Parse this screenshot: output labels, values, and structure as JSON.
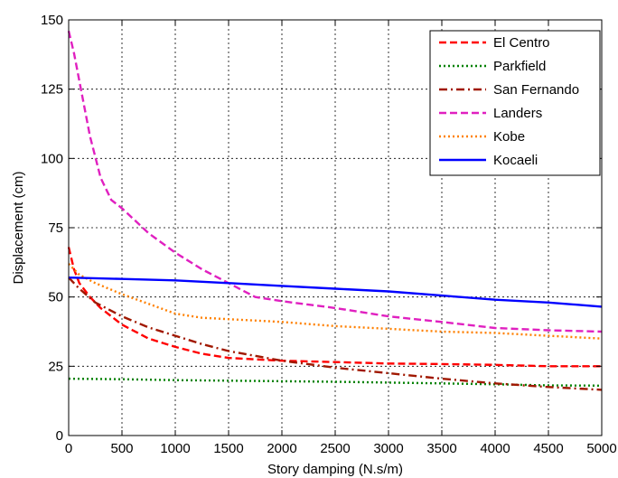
{
  "chart_data": {
    "type": "line",
    "xlabel": "Story damping (N.s/m)",
    "ylabel": "Displacement (cm)",
    "xlim": [
      0,
      5000
    ],
    "ylim": [
      0,
      150
    ],
    "x_ticks": [
      0,
      500,
      1000,
      1500,
      2000,
      2500,
      3000,
      3500,
      4000,
      4500,
      5000
    ],
    "y_ticks": [
      0,
      25,
      50,
      75,
      100,
      125,
      150
    ],
    "x_tick_labels": [
      "0",
      "500",
      "1000",
      "1500",
      "2000",
      "2500",
      "3000",
      "3500",
      "4000",
      "4500",
      "5000"
    ],
    "y_tick_labels": [
      "0",
      "25",
      "50",
      "75",
      "100",
      "125",
      "150"
    ],
    "grid": true,
    "legend_position": "top-right",
    "series": [
      {
        "name": "El Centro",
        "color": "#ff0000",
        "style": "dashed",
        "points": [
          [
            0,
            68
          ],
          [
            50,
            60
          ],
          [
            100,
            55
          ],
          [
            200,
            50
          ],
          [
            300,
            46
          ],
          [
            400,
            43
          ],
          [
            500,
            40
          ],
          [
            750,
            35
          ],
          [
            1000,
            32
          ],
          [
            1250,
            29.5
          ],
          [
            1500,
            28
          ],
          [
            2000,
            27
          ],
          [
            2500,
            26.5
          ],
          [
            3000,
            26
          ],
          [
            3500,
            25.8
          ],
          [
            4000,
            25.5
          ],
          [
            4500,
            25
          ],
          [
            5000,
            25
          ]
        ]
      },
      {
        "name": "Parkfield",
        "color": "#008000",
        "style": "dotted",
        "points": [
          [
            0,
            20.5
          ],
          [
            500,
            20.3
          ],
          [
            1000,
            20
          ],
          [
            1500,
            19.8
          ],
          [
            2000,
            19.6
          ],
          [
            2500,
            19.4
          ],
          [
            3000,
            19.1
          ],
          [
            3500,
            18.8
          ],
          [
            4000,
            18.5
          ],
          [
            4500,
            18.1
          ],
          [
            5000,
            18
          ]
        ]
      },
      {
        "name": "San Fernando",
        "color": "#a01800",
        "style": "dashdot",
        "points": [
          [
            0,
            57
          ],
          [
            100,
            53
          ],
          [
            250,
            48
          ],
          [
            500,
            43
          ],
          [
            750,
            39
          ],
          [
            1000,
            36
          ],
          [
            1250,
            33
          ],
          [
            1500,
            30.5
          ],
          [
            2000,
            27
          ],
          [
            2500,
            24.5
          ],
          [
            3000,
            22.5
          ],
          [
            3500,
            20.5
          ],
          [
            4000,
            18.8
          ],
          [
            4500,
            17.5
          ],
          [
            5000,
            16.5
          ]
        ]
      },
      {
        "name": "Landers",
        "color": "#e020c0",
        "style": "dashed",
        "points": [
          [
            0,
            146
          ],
          [
            50,
            138
          ],
          [
            100,
            128
          ],
          [
            200,
            108
          ],
          [
            300,
            93
          ],
          [
            400,
            85
          ],
          [
            500,
            82
          ],
          [
            750,
            73
          ],
          [
            1000,
            66
          ],
          [
            1250,
            60
          ],
          [
            1500,
            55
          ],
          [
            1750,
            50
          ],
          [
            2000,
            48.5
          ],
          [
            2500,
            46
          ],
          [
            3000,
            43
          ],
          [
            3500,
            41
          ],
          [
            4000,
            38.8
          ],
          [
            4500,
            38
          ],
          [
            5000,
            37.5
          ]
        ]
      },
      {
        "name": "Kobe",
        "color": "#ff8000",
        "style": "dotted",
        "points": [
          [
            0,
            62
          ],
          [
            100,
            58
          ],
          [
            250,
            55
          ],
          [
            500,
            51
          ],
          [
            750,
            47.5
          ],
          [
            1000,
            44
          ],
          [
            1250,
            42.5
          ],
          [
            1500,
            42
          ],
          [
            2000,
            41
          ],
          [
            2500,
            39.5
          ],
          [
            3000,
            38.5
          ],
          [
            3500,
            37.5
          ],
          [
            4000,
            37
          ],
          [
            4500,
            36
          ],
          [
            5000,
            35
          ]
        ]
      },
      {
        "name": "Kocaeli",
        "color": "#0000ff",
        "style": "solid",
        "points": [
          [
            0,
            57
          ],
          [
            500,
            56.5
          ],
          [
            1000,
            56
          ],
          [
            1500,
            55
          ],
          [
            2000,
            54
          ],
          [
            2500,
            53
          ],
          [
            3000,
            52
          ],
          [
            3500,
            50.5
          ],
          [
            4000,
            49
          ],
          [
            4500,
            48
          ],
          [
            5000,
            46.5
          ]
        ]
      }
    ]
  }
}
